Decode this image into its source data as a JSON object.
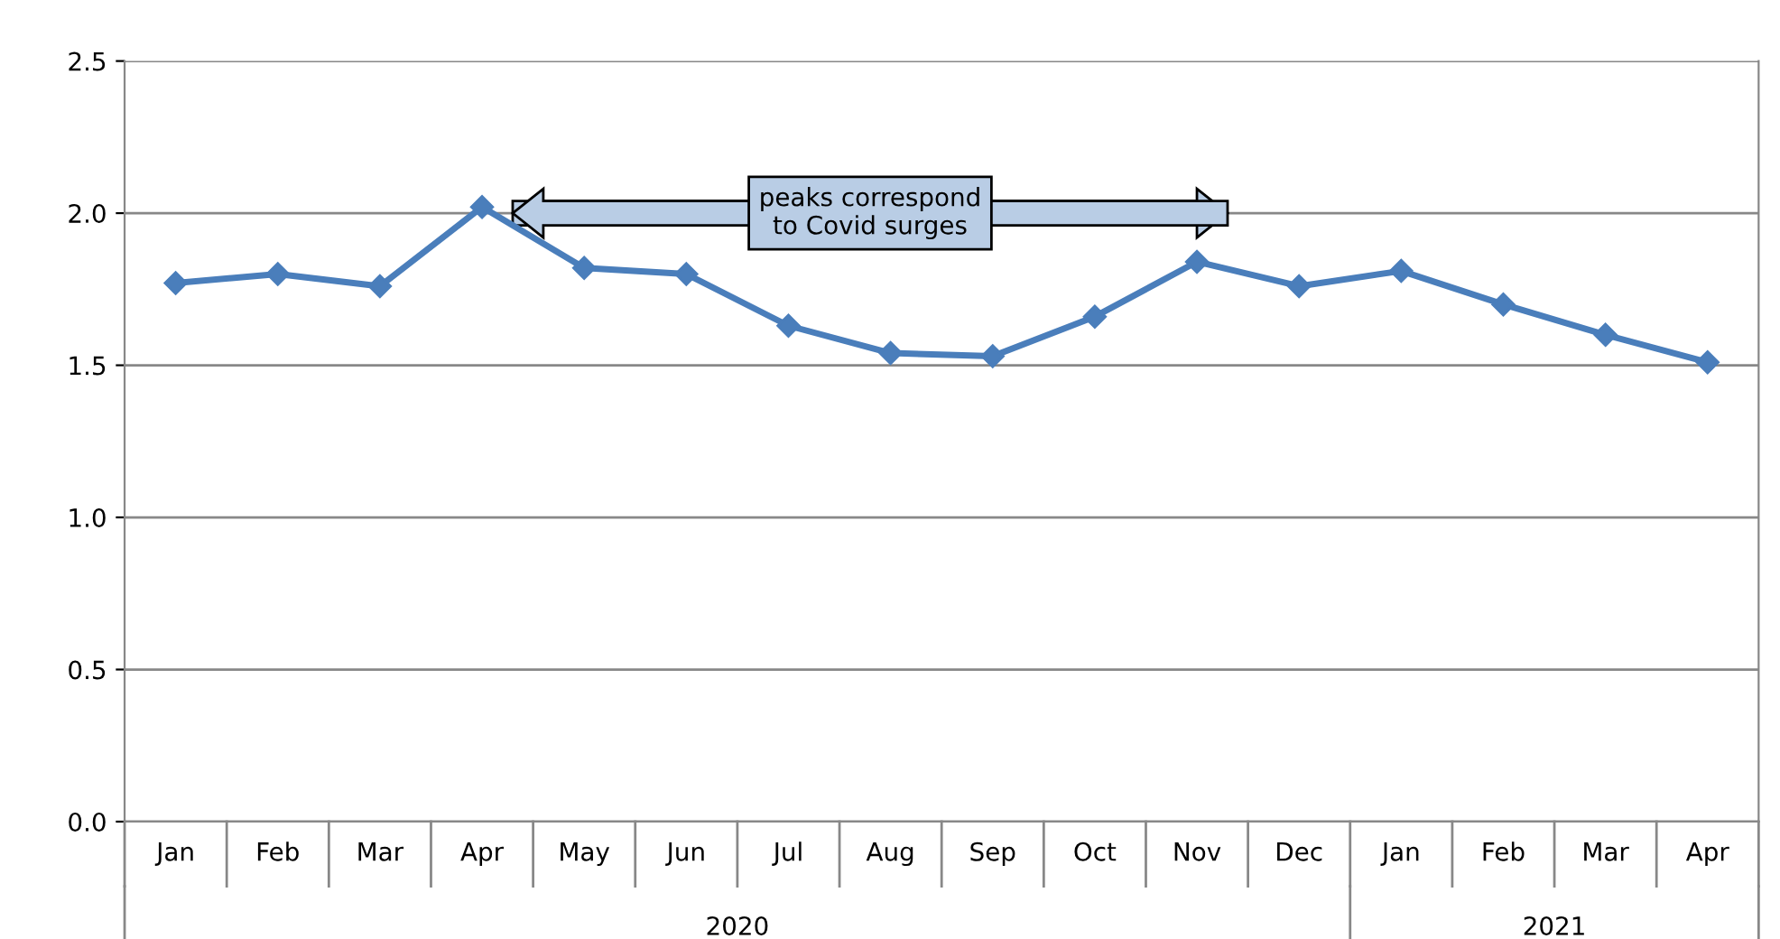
{
  "chart_data": {
    "type": "line",
    "categories": [
      "Jan",
      "Feb",
      "Mar",
      "Apr",
      "May",
      "Jun",
      "Jul",
      "Aug",
      "Sep",
      "Oct",
      "Nov",
      "Dec",
      "Jan",
      "Feb",
      "Mar",
      "Apr"
    ],
    "series": [
      {
        "color": "#4a7ebb",
        "values": [
          1.77,
          1.8,
          1.76,
          2.02,
          1.82,
          1.8,
          1.63,
          1.54,
          1.53,
          1.66,
          1.84,
          1.76,
          1.81,
          1.7,
          1.6,
          1.51
        ]
      }
    ],
    "ylim": [
      0,
      2.5
    ],
    "yticks": [
      {
        "value": 0,
        "label": "0.0"
      },
      {
        "value": 0.5,
        "label": "0.5"
      },
      {
        "value": 1.0,
        "label": "1.0"
      },
      {
        "value": 1.5,
        "label": "1.5"
      },
      {
        "value": 2.0,
        "label": "2.0"
      },
      {
        "value": 2.5,
        "label": "2.5"
      }
    ],
    "grid": "y",
    "marker": "diamond",
    "line_style": "solid",
    "legend": false,
    "annotations": [
      "2020",
      "2021",
      "peaks correspond\nto Covid surges"
    ]
  }
}
